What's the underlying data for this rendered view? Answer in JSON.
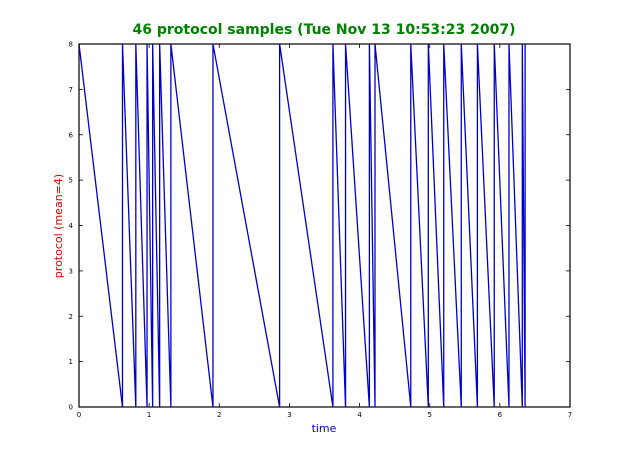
{
  "chart_data": {
    "type": "line",
    "title": "46 protocol samples (Tue Nov 13 10:53:23 2007)",
    "xlabel": "time",
    "ylabel": "protocol (mean=4)",
    "xlim": [
      0,
      7
    ],
    "ylim": [
      0,
      8
    ],
    "xticks": [
      "0",
      "1",
      "2",
      "3",
      "4",
      "5",
      "6",
      "7"
    ],
    "yticks": [
      "0",
      "1",
      "2",
      "3",
      "4",
      "5",
      "6",
      "7",
      "8"
    ],
    "grid": false,
    "colors": {
      "series": "#0000cc",
      "title": "#008000",
      "xlabel": "#0000cc",
      "ylabel": "#dd0000"
    },
    "series": [
      {
        "x": [
          0,
          0.62,
          0.62,
          0.81,
          0.81,
          0.97,
          0.97,
          1.05,
          1.05,
          1.15,
          1.15,
          1.31,
          1.31,
          1.91,
          1.91,
          2.86,
          2.86,
          3.62,
          3.62,
          3.8,
          3.8,
          4.14,
          4.14,
          4.22,
          4.22,
          4.73,
          4.73,
          4.98,
          4.98,
          5.2,
          5.2,
          5.45,
          5.45,
          5.68,
          5.68,
          5.92,
          5.92,
          6.13,
          6.13,
          6.32,
          6.32,
          6.36,
          6.36
        ],
        "y": [
          8,
          0,
          8,
          0,
          8,
          0,
          8,
          0,
          8,
          0,
          8,
          0,
          8,
          0,
          8,
          0,
          8,
          0,
          8,
          0,
          8,
          0,
          8,
          0,
          8,
          0,
          8,
          0,
          8,
          0,
          8,
          0,
          8,
          0,
          8,
          0,
          8,
          0,
          8,
          0,
          8,
          0,
          8
        ]
      }
    ]
  }
}
